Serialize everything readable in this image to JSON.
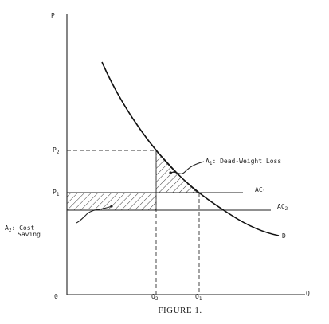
{
  "figure": {
    "caption": "FIGURE 1.",
    "axes": {
      "y_label": "P",
      "x_label": "Q",
      "origin_label": "0"
    },
    "y_ticks": [
      {
        "main": "P",
        "sub": "2"
      },
      {
        "main": "P",
        "sub": "1"
      }
    ],
    "x_ticks": [
      {
        "main": "Q",
        "sub": "2"
      },
      {
        "main": "Q",
        "sub": "1"
      }
    ],
    "curves": {
      "ac1": {
        "main": "AC",
        "sub": "1"
      },
      "ac2": {
        "main": "AC",
        "sub": "2"
      },
      "demand": "D"
    },
    "annotations": {
      "a1": {
        "main": "A",
        "sub": "1",
        "text": ": Dead-Weight Loss"
      },
      "a2": {
        "main": "A",
        "sub": "2",
        "text_line1": ": Cost",
        "text_line2": "Saving"
      }
    }
  }
}
